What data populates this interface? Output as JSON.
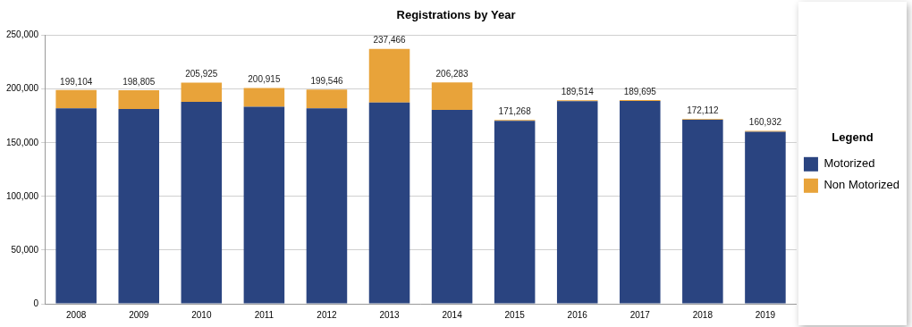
{
  "chart_data": {
    "type": "bar",
    "title": "Registrations by Year",
    "categories": [
      "2008",
      "2009",
      "2010",
      "2011",
      "2012",
      "2013",
      "2014",
      "2015",
      "2016",
      "2017",
      "2018",
      "2019"
    ],
    "series": [
      {
        "name": "Motorized",
        "color": "#2a4480",
        "values": [
          182000,
          181500,
          188000,
          183500,
          182000,
          187500,
          180500,
          170500,
          188800,
          188900,
          171500,
          160300
        ]
      },
      {
        "name": "Non Motorized",
        "color": "#e8a33a",
        "values": [
          17104,
          17305,
          17925,
          17415,
          17546,
          49966,
          25783,
          768,
          714,
          795,
          612,
          632
        ]
      }
    ],
    "totals": [
      199104,
      198805,
      205925,
      200915,
      199546,
      237466,
      206283,
      171268,
      189514,
      189695,
      172112,
      160932
    ],
    "total_labels": [
      "199,104",
      "198,805",
      "205,925",
      "200,915",
      "199,546",
      "237,466",
      "206,283",
      "171,268",
      "189,514",
      "189,695",
      "172,112",
      "160,932"
    ],
    "stacked": true,
    "ylim": [
      0,
      250000
    ],
    "yticks": [
      0,
      {
        "value": 50000,
        "label": "50,000"
      },
      {
        "value": 100000,
        "label": "100,000"
      },
      {
        "value": 150000,
        "label": "150,000"
      },
      {
        "value": 200000,
        "label": "200,000"
      },
      {
        "value": 250000,
        "label": "250,000"
      }
    ],
    "grid": true,
    "legend": "right",
    "legend_title": "Legend"
  }
}
